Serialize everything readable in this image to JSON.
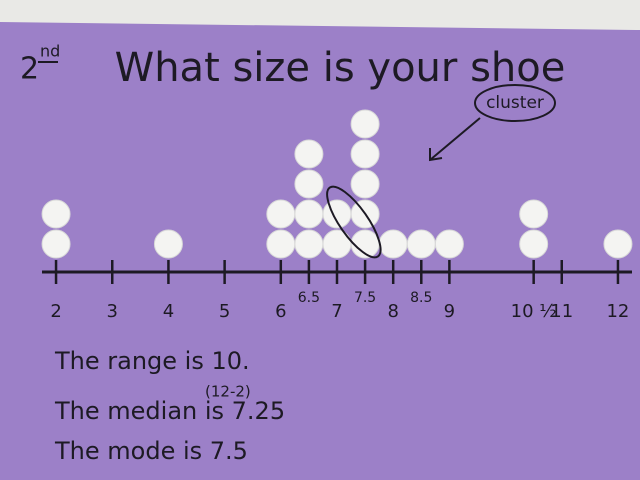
{
  "chart_data": {
    "type": "dot",
    "grade": "2",
    "grade_suffix": "nd",
    "title": "What size is your shoe",
    "annotations": [
      "cluster",
      "The range is 10.",
      "(12-2)",
      "The median is 7.25",
      "The mode is 7.5"
    ],
    "x": [
      2,
      4,
      6,
      6.5,
      7,
      7.5,
      8,
      8.5,
      9,
      10.5,
      12
    ],
    "values": [
      2,
      1,
      2,
      4,
      2,
      5,
      1,
      1,
      1,
      2,
      1
    ],
    "color": "#f4f4f2",
    "xlim": [
      1.75,
      12.25
    ],
    "xticks": [
      2,
      3,
      4,
      5,
      6,
      6.5,
      7,
      7.5,
      8,
      8.5,
      9,
      {
        "value": 10.5,
        "label": "10 ½"
      },
      11,
      12
    ]
  }
}
